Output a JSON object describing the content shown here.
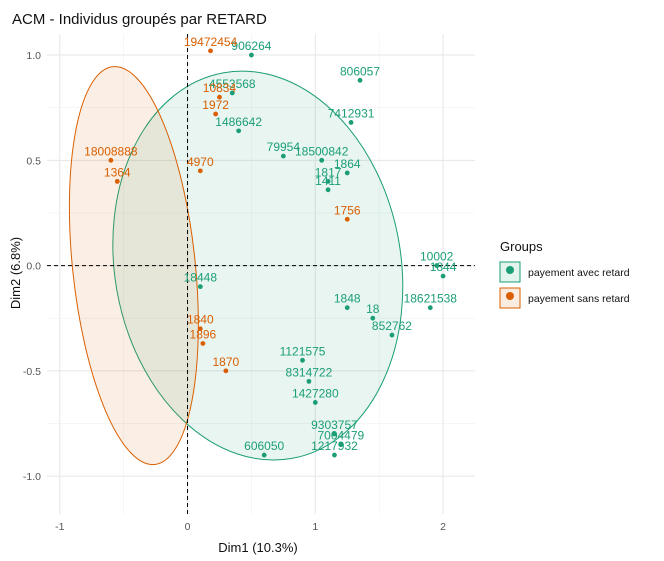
{
  "chart_data": {
    "type": "scatter",
    "title": "ACM - Individus groupés par RETARD",
    "xlabel": "Dim1 (10.3%)",
    "ylabel": "Dim2 (6.8%)",
    "xlim": [
      -1.1,
      2.25
    ],
    "ylim": [
      -1.18,
      1.1
    ],
    "x_ticks": [
      -1,
      0,
      1,
      2
    ],
    "y_ticks": [
      -1.0,
      -0.5,
      0.0,
      0.5,
      1.0
    ],
    "x_tick_labels": [
      "-1",
      "0",
      "1",
      "2"
    ],
    "y_tick_labels": [
      "-1.0",
      "-0.5",
      "0.0",
      "0.5",
      "1.0"
    ],
    "grid": true,
    "reference_lines": {
      "x": 0,
      "y": 0,
      "style": "dashed"
    },
    "legend": {
      "title": "Groups",
      "placement": "right",
      "entries": [
        "payement avec retard",
        "payement sans retard"
      ]
    },
    "colors": {
      "payement avec retard": "#1b9e77",
      "payement sans retard": "#d95f02"
    },
    "series": [
      {
        "name": "payement avec retard",
        "ellipse": {
          "cx": 0.55,
          "cy": 0.0,
          "rx": 1.12,
          "ry": 0.93,
          "angle_deg": 10
        },
        "points": [
          {
            "x": 0.5,
            "y": 1.0,
            "label": "906264"
          },
          {
            "x": 1.35,
            "y": 0.88,
            "label": "806057"
          },
          {
            "x": 1.28,
            "y": 0.68,
            "label": "7412931"
          },
          {
            "x": 0.35,
            "y": 0.82,
            "label": "4553568"
          },
          {
            "x": 0.4,
            "y": 0.64,
            "label": "1486642"
          },
          {
            "x": 0.75,
            "y": 0.52,
            "label": "79954"
          },
          {
            "x": 1.05,
            "y": 0.5,
            "label": "18500842"
          },
          {
            "x": 1.25,
            "y": 0.44,
            "label": "1864"
          },
          {
            "x": 1.1,
            "y": 0.4,
            "label": "1817"
          },
          {
            "x": 1.1,
            "y": 0.36,
            "label": "1411"
          },
          {
            "x": 0.9,
            "y": -0.45,
            "label": "1121575"
          },
          {
            "x": 0.95,
            "y": -0.55,
            "label": "8314722"
          },
          {
            "x": 1.0,
            "y": -0.65,
            "label": "1427280"
          },
          {
            "x": 1.15,
            "y": -0.8,
            "label": "9303757"
          },
          {
            "x": 1.2,
            "y": -0.85,
            "label": "7004479"
          },
          {
            "x": 1.15,
            "y": -0.9,
            "label": "1217932"
          },
          {
            "x": 1.9,
            "y": -0.2,
            "label": "18621538"
          },
          {
            "x": 1.6,
            "y": -0.33,
            "label": "852762"
          },
          {
            "x": 1.45,
            "y": -0.25,
            "label": "18"
          },
          {
            "x": 1.25,
            "y": -0.2,
            "label": "1848"
          },
          {
            "x": 0.6,
            "y": -0.9,
            "label": "606050"
          },
          {
            "x": 1.95,
            "y": 0.0,
            "label": "10002"
          },
          {
            "x": 2.0,
            "y": -0.05,
            "label": "1844"
          },
          {
            "x": 0.1,
            "y": -0.1,
            "label": "18448"
          }
        ]
      },
      {
        "name": "payement sans retard",
        "ellipse": {
          "cx": -0.42,
          "cy": 0.0,
          "rx": 0.48,
          "ry": 0.95,
          "angle_deg": 6
        },
        "points": [
          {
            "x": 0.18,
            "y": 1.02,
            "label": "19472454"
          },
          {
            "x": 0.25,
            "y": 0.8,
            "label": "10834"
          },
          {
            "x": 0.22,
            "y": 0.72,
            "label": "1972"
          },
          {
            "x": -0.6,
            "y": 0.5,
            "label": "18008888"
          },
          {
            "x": 0.1,
            "y": 0.45,
            "label": "4970"
          },
          {
            "x": -0.55,
            "y": 0.4,
            "label": "1364"
          },
          {
            "x": 0.1,
            "y": -0.3,
            "label": "1840"
          },
          {
            "x": 0.12,
            "y": -0.37,
            "label": "1896"
          },
          {
            "x": 0.3,
            "y": -0.5,
            "label": "1870"
          },
          {
            "x": 1.25,
            "y": 0.22,
            "label": "1756"
          }
        ]
      }
    ]
  }
}
